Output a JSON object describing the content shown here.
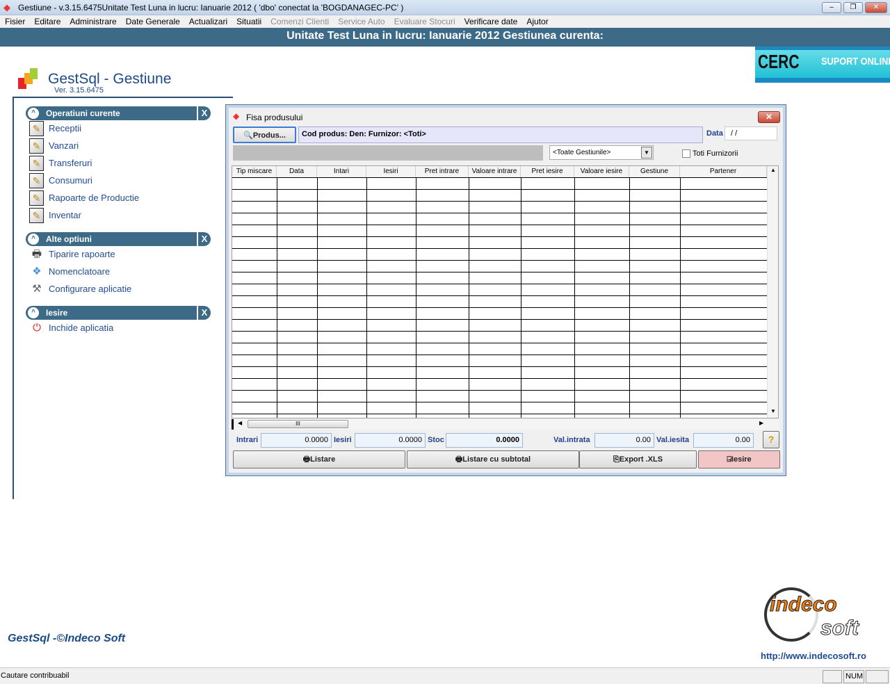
{
  "window": {
    "title": "Gestiune - v.3.15.6475Unitate Test Luna in lucru: Ianuarie 2012  ( 'dbo' conectat la 'BOGDANAGEC-PC' )",
    "min": "‒",
    "max": "❐",
    "close": "✕"
  },
  "menu": [
    {
      "label": "Fisier",
      "enabled": true
    },
    {
      "label": "Editare",
      "enabled": true
    },
    {
      "label": "Administrare",
      "enabled": true
    },
    {
      "label": "Date Generale",
      "enabled": true
    },
    {
      "label": "Actualizari",
      "enabled": true
    },
    {
      "label": "Situatii",
      "enabled": true
    },
    {
      "label": "Comenzi Clienti",
      "enabled": false
    },
    {
      "label": "Service Auto",
      "enabled": false
    },
    {
      "label": "Evaluare Stocuri",
      "enabled": false
    },
    {
      "label": "Verificare date",
      "enabled": true
    },
    {
      "label": "Ajutor",
      "enabled": true
    }
  ],
  "banner": "Unitate Test Luna in lucru: Ianuarie 2012 Gestiunea curenta:",
  "cerc": {
    "logo": "CERC",
    "support": "SUPORT ONLINE"
  },
  "app": {
    "title": "GestSql - Gestiune",
    "version": "Ver. 3.15.6475",
    "footer": "GestSql -©Indeco Soft"
  },
  "sidebar": {
    "sections": [
      {
        "title": "Operatiuni curente",
        "items": [
          {
            "label": "Receptii",
            "icon": "pencil-icon"
          },
          {
            "label": "Vanzari",
            "icon": "pencil-icon"
          },
          {
            "label": "Transferuri",
            "icon": "pencil-icon"
          },
          {
            "label": "Consumuri",
            "icon": "pencil-icon"
          },
          {
            "label": "Rapoarte de Productie",
            "icon": "pencil-icon"
          },
          {
            "label": "Inventar",
            "icon": "pencil-icon"
          }
        ]
      },
      {
        "title": "Alte optiuni",
        "items": [
          {
            "label": "Tiparire rapoarte",
            "icon": "printer-icon"
          },
          {
            "label": "Nomenclatoare",
            "icon": "cards-icon"
          },
          {
            "label": "Configurare aplicatie",
            "icon": "tools-icon"
          }
        ]
      },
      {
        "title": "Iesire",
        "items": [
          {
            "label": "Inchide aplicatia",
            "icon": "power-icon"
          }
        ]
      }
    ],
    "close": "X"
  },
  "dialog": {
    "title": "Fisa produsului",
    "produs_button": "Produs...",
    "info": "Cod produs:  Den:  Furnizor: <Toti>",
    "data_label": "Data",
    "data_value": " / /",
    "gestiune_select": "<Toate Gestiunile>",
    "toti_furnizorii": "Toti Furnizorii",
    "toti_furnizorii_checked": false,
    "columns": [
      "Tip miscare",
      "Data",
      "Intari",
      "Iesiri",
      "Pret intrare",
      "Valoare intrare",
      "Pret iesire",
      "Valoare iesire",
      "Gestiune",
      "Partener"
    ],
    "rows": [],
    "totals": {
      "intrari_label": "Intrari",
      "intrari": "0.0000",
      "iesiri_label": "Iesiri",
      "iesiri": "0.0000",
      "stoc_label": "Stoc",
      "stoc": "0.0000",
      "val_intrata_label": "Val.intrata",
      "val_intrata": "0.00",
      "val_iesita_label": "Val.iesita",
      "val_iesita": "0.00"
    },
    "buttons": {
      "listare": "Listare",
      "listare_subtotal": "Listare cu subtotal",
      "export": "Export .XLS",
      "iesire": "Iesire"
    }
  },
  "indeco": {
    "logo": "indeco soft",
    "url": "http://www.indecosoft.ro"
  },
  "status": {
    "text": "Cautare contribuabil",
    "num": "NUM"
  }
}
